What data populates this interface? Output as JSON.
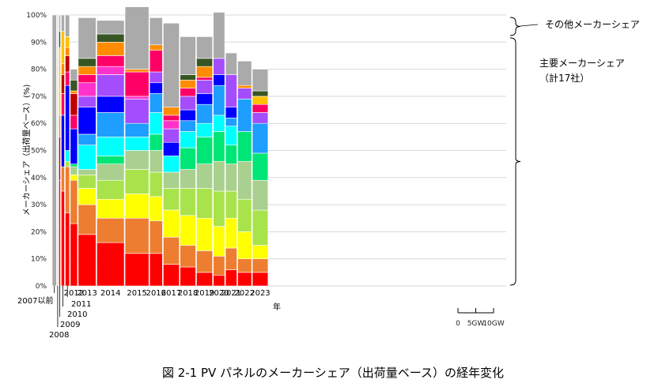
{
  "chart_data": {
    "type": "bar",
    "subtype": "variable-width stacked 100% bar (marimekko)",
    "ylabel": "メーカーシェア（出荷量ベース）(%)",
    "xlabel": "年",
    "ylim": [
      0,
      100
    ],
    "yticks": [
      "0%",
      "10%",
      "20%",
      "30%",
      "40%",
      "50%",
      "60%",
      "70%",
      "80%",
      "90%",
      "100%"
    ],
    "scale_labels": [
      "0",
      "5GW",
      "10GW"
    ],
    "scale_gw": [
      0,
      5,
      10
    ],
    "categories": [
      "2007以前",
      "2008",
      "2009",
      "2010",
      "2011",
      "2012",
      "2013",
      "2014",
      "2015",
      "2016",
      "2017",
      "2018",
      "2019",
      "2020",
      "2021",
      "2022",
      "2023"
    ],
    "volume_gw": [
      1.2,
      0.23,
      0.45,
      0.9,
      1.2,
      2.0,
      5.0,
      7.7,
      6.7,
      3.6,
      4.5,
      4.4,
      4.5,
      3.2,
      3.2,
      3.9,
      4.4
    ],
    "segments": [
      [
        0,
        0,
        0,
        0,
        0,
        0,
        0,
        0,
        0,
        0,
        0,
        0,
        0,
        0,
        0,
        0,
        0,
        0,
        0,
        100
      ],
      [
        0,
        0,
        0,
        0,
        0,
        0,
        0,
        0,
        0,
        0,
        0,
        0,
        0,
        0,
        0,
        0,
        2,
        0,
        0,
        98
      ],
      [
        39,
        0,
        0,
        0,
        0,
        0,
        0,
        0,
        0,
        0,
        0,
        0,
        0,
        0,
        0,
        16,
        8,
        25,
        6,
        6
      ],
      [
        35,
        9,
        0,
        0,
        0,
        0,
        0,
        0,
        0,
        0,
        19,
        0,
        0,
        0,
        8,
        7,
        4,
        12,
        0,
        6
      ],
      [
        27,
        17,
        0,
        2,
        0,
        0,
        0,
        0,
        4,
        0,
        24,
        0,
        0,
        0,
        5,
        6,
        3,
        4,
        0,
        8
      ],
      [
        23,
        16,
        2,
        0,
        3,
        1,
        0,
        0,
        0,
        0,
        13,
        0,
        0,
        0,
        5,
        8,
        1,
        0,
        4,
        4
      ],
      [
        19,
        11,
        6,
        5,
        2,
        0,
        0,
        0,
        9,
        4,
        10,
        0,
        4,
        5,
        3,
        0,
        3,
        0,
        3,
        15
      ],
      [
        16,
        9,
        7,
        7,
        6,
        3,
        0,
        0,
        7,
        9,
        6,
        0,
        8,
        3,
        4,
        0,
        5,
        0,
        3,
        5
      ],
      [
        12,
        13,
        9,
        9,
        7,
        0,
        0,
        0,
        5,
        5,
        0,
        0,
        9,
        1,
        9,
        0,
        1,
        0,
        0,
        23
      ],
      [
        12,
        12,
        9,
        9,
        8,
        6,
        0,
        0,
        8,
        7,
        4,
        0,
        4,
        0,
        8,
        0,
        2,
        0,
        0,
        10
      ],
      [
        8,
        10,
        10,
        8,
        6,
        0,
        0,
        0,
        6,
        0,
        5,
        0,
        5,
        3,
        2,
        0,
        3,
        0,
        0,
        31
      ],
      [
        7,
        8,
        11,
        10,
        7,
        8,
        0,
        0,
        6,
        4,
        4,
        0,
        5,
        0,
        3,
        0,
        3,
        0,
        2,
        14
      ],
      [
        5,
        8,
        12,
        11,
        9,
        10,
        0,
        0,
        5,
        7,
        4,
        0,
        5,
        0,
        1,
        0,
        4,
        0,
        3,
        8
      ],
      [
        4,
        7,
        11,
        13,
        11,
        11,
        0,
        0,
        6,
        11,
        4,
        0,
        6,
        0,
        0,
        0,
        0,
        0,
        0,
        17
      ],
      [
        6,
        8,
        11,
        10,
        10,
        7,
        0,
        0,
        7,
        3,
        4,
        0,
        12,
        0,
        0,
        0,
        0,
        0,
        0,
        8
      ],
      [
        5,
        5,
        10,
        12,
        14,
        11,
        0,
        0,
        0,
        12,
        0,
        0,
        4,
        0,
        0,
        0,
        1,
        0,
        0,
        9
      ],
      [
        5,
        5,
        5,
        13,
        11,
        10,
        0,
        0,
        0,
        11,
        0,
        0,
        4,
        0,
        3,
        0,
        0,
        3,
        2,
        8
      ]
    ],
    "colors": [
      "#ff0000",
      "#ed7d31",
      "#ffff00",
      "#a9e34b",
      "#a9d08e",
      "#00e676",
      "#7ed957",
      "#00ff7f",
      "#00ffff",
      "#1e9eff",
      "#0000ff",
      "#6a0dad",
      "#a44dff",
      "#ff33cc",
      "#ff0066",
      "#c00000",
      "#ff8c00",
      "#ffc000",
      "#375623",
      "#aaaaaa"
    ],
    "annotations": [
      "その他メーカーシェア",
      "主要メーカーシェア",
      "（計17社）"
    ],
    "caption": "図 2-1  PV パネルのメーカーシェア（出荷量ベース）の経年変化"
  }
}
